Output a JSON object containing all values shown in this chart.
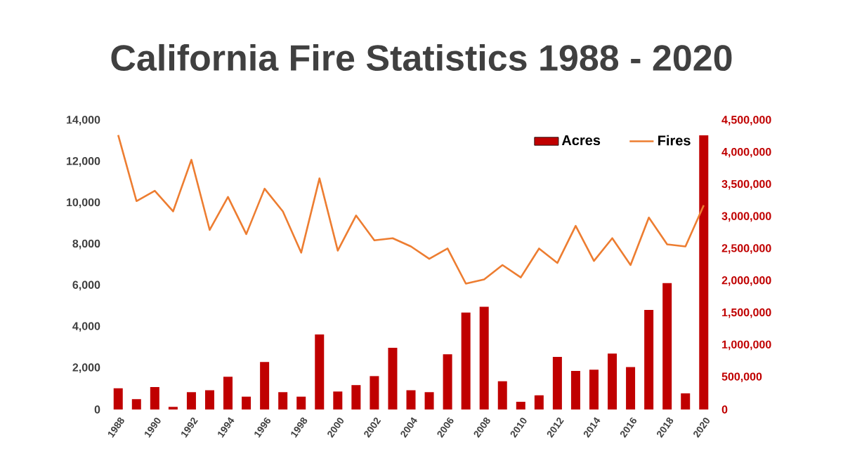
{
  "chart_data": {
    "type": "bar",
    "title": "California Fire Statistics 1988 - 2020",
    "categories": [
      "1988",
      null,
      "1990",
      null,
      "1992",
      null,
      "1994",
      null,
      "1996",
      null,
      "1998",
      null,
      "2000",
      null,
      "2002",
      null,
      "2004",
      null,
      "2006",
      null,
      "2008",
      null,
      "2010",
      null,
      "2012",
      null,
      "2014",
      null,
      "2016",
      null,
      "2018",
      null,
      "2020"
    ],
    "series": [
      {
        "name": "Acres",
        "axis": "y2",
        "color": "#c00000",
        "values": [
          330000,
          160000,
          350000,
          40000,
          270000,
          300000,
          510000,
          200000,
          740000,
          270000,
          200000,
          1170000,
          280000,
          380000,
          520000,
          960000,
          300000,
          270000,
          860000,
          1510000,
          1600000,
          440000,
          120000,
          220000,
          820000,
          600000,
          620000,
          870000,
          660000,
          1550000,
          1970000,
          250000,
          4270000
        ]
      },
      {
        "name": "Fires",
        "type": "line",
        "color": "#ed7d31",
        "values": [
          13300,
          10100,
          10600,
          9600,
          12100,
          8700,
          10300,
          8500,
          10700,
          9600,
          7600,
          11200,
          7700,
          9400,
          8200,
          8300,
          7900,
          7300,
          7800,
          6100,
          6300,
          7000,
          6400,
          7800,
          7100,
          8900,
          7200,
          8300,
          7000,
          9300,
          8000,
          7900,
          9900
        ]
      }
    ],
    "ylim": [
      0,
      14000
    ],
    "yticks": [
      0,
      {
        "value": 2000,
        "label": "2,000"
      },
      {
        "value": 4000,
        "label": "4,000"
      },
      {
        "value": 6000,
        "label": "6,000"
      },
      {
        "value": 8000,
        "label": "8,000"
      },
      {
        "value": 10000,
        "label": "10,000"
      },
      {
        "value": 12000,
        "label": "12,000"
      },
      {
        "value": 14000,
        "label": "14,000"
      }
    ],
    "y2lim": [
      0,
      4500000
    ],
    "y2ticks": [
      0,
      {
        "value": 500000,
        "label": "500,000"
      },
      {
        "value": 1000000,
        "label": "1,000,000"
      },
      {
        "value": 1500000,
        "label": "1,500,000"
      },
      {
        "value": 2000000,
        "label": "2,000,000"
      },
      {
        "value": 2500000,
        "label": "2,500,000"
      },
      {
        "value": 3000000,
        "label": "3,000,000"
      },
      {
        "value": 3500000,
        "label": "3,500,000"
      },
      {
        "value": 4000000,
        "label": "4,000,000"
      },
      {
        "value": 4500000,
        "label": "4,500,000"
      }
    ],
    "legend": "top right",
    "marker": "none",
    "line_style": "solid"
  }
}
